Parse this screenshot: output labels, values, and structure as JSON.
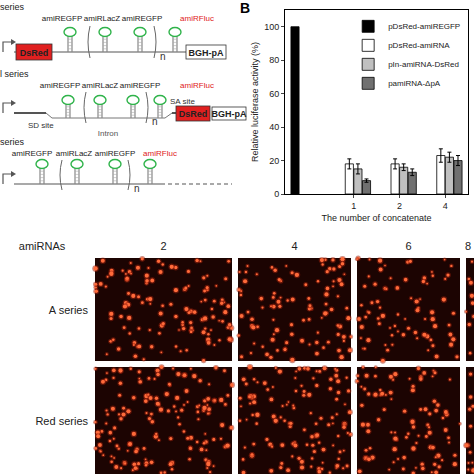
{
  "panel_a": {
    "constructs": [
      {
        "label": "series",
        "hairpins": [
          "amiREGFP",
          "amiRLacZ",
          "amiREGFP",
          "amiRFluc"
        ],
        "hairpin_colors": [
          "#222222",
          "#222222",
          "#222222",
          "#e02020"
        ],
        "repeat": "n",
        "elements": [
          "DsRed",
          "BGH-pA"
        ]
      },
      {
        "label": "l series",
        "hairpins": [
          "amiREGFP",
          "amiRLacZ",
          "amiREGFP",
          "amiRFluc"
        ],
        "hairpin_colors": [
          "#222222",
          "#222222",
          "#222222",
          "#e02020"
        ],
        "repeat": "n",
        "elements": [
          "SD site",
          "SA site",
          "Intron",
          "DsRed",
          "BGH-pA"
        ]
      },
      {
        "label": "series",
        "hairpins": [
          "amiREGFP",
          "amiRLacZ",
          "amiREGFP",
          "amiRFluc"
        ],
        "hairpin_colors": [
          "#222222",
          "#222222",
          "#222222",
          "#e02020"
        ],
        "repeat": "n",
        "elements": []
      }
    ]
  },
  "panel_label": "B",
  "chart_data": {
    "type": "bar",
    "y_label": "Relative luciferase activity (%)",
    "x_label": "The number of concatenate",
    "categories": [
      null,
      "1",
      "2",
      "4"
    ],
    "series": [
      {
        "name": "pDsRed-amiREGFP",
        "color": "#000000",
        "values": [
          100,
          null,
          null,
          null
        ]
      },
      {
        "name": "pDsRed-amiRNA",
        "color": "#ffffff",
        "values": [
          null,
          18,
          18,
          23
        ],
        "errors": [
          null,
          3,
          3,
          4
        ]
      },
      {
        "name": "pIn-amiRNA-DsRed",
        "color": "#c0c0c0",
        "values": [
          null,
          15,
          16,
          22
        ],
        "errors": [
          null,
          3,
          2,
          3
        ]
      },
      {
        "name": "pamiRNA-ΔpA",
        "color": "#707070",
        "values": [
          null,
          8,
          13,
          20
        ],
        "errors": [
          null,
          1,
          2,
          3
        ]
      }
    ],
    "ylim": [
      0,
      110
    ],
    "yticks": [
      0,
      20,
      40,
      60,
      80,
      100
    ],
    "grid": false,
    "legend": "upper right"
  },
  "panel_c": {
    "column_header": "amiRNAs",
    "columns": [
      "2",
      "4",
      "6",
      "8"
    ],
    "rows": [
      "A series",
      "Red series"
    ]
  }
}
